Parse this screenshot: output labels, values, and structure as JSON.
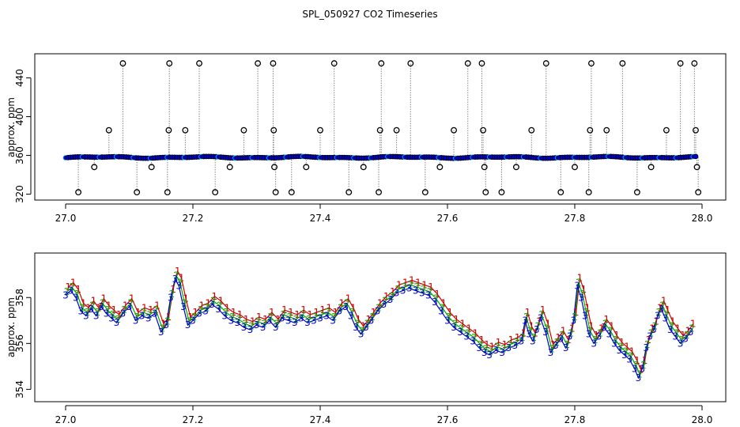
{
  "title": "SPL_050927  CO2 Timeseries",
  "chart_data": [
    {
      "type": "scatter",
      "ylabel": "approx. ppm",
      "xlim": [
        27.0,
        28.0
      ],
      "ylim": [
        318,
        460
      ],
      "xticks": [
        27.0,
        27.2,
        27.4,
        27.6,
        27.8,
        28.0
      ],
      "yticks": [
        320,
        360,
        400,
        440
      ],
      "series": [
        {
          "marker": "open-circle",
          "color": "#000000",
          "baseline": 358,
          "values_description_hidden": false,
          "outliers": [
            {
              "x": 27.02,
              "y": 322
            },
            {
              "x": 27.045,
              "y": 348
            },
            {
              "x": 27.068,
              "y": 386
            },
            {
              "x": 27.09,
              "y": 455
            },
            {
              "x": 27.112,
              "y": 322
            },
            {
              "x": 27.135,
              "y": 348
            },
            {
              "x": 27.16,
              "y": 322
            },
            {
              "x": 27.162,
              "y": 386
            },
            {
              "x": 27.163,
              "y": 455
            },
            {
              "x": 27.188,
              "y": 386
            },
            {
              "x": 27.21,
              "y": 455
            },
            {
              "x": 27.235,
              "y": 322
            },
            {
              "x": 27.258,
              "y": 348
            },
            {
              "x": 27.28,
              "y": 386
            },
            {
              "x": 27.302,
              "y": 455
            },
            {
              "x": 27.326,
              "y": 455
            },
            {
              "x": 27.327,
              "y": 386
            },
            {
              "x": 27.328,
              "y": 348
            },
            {
              "x": 27.33,
              "y": 322
            },
            {
              "x": 27.355,
              "y": 322
            },
            {
              "x": 27.378,
              "y": 348
            },
            {
              "x": 27.4,
              "y": 386
            },
            {
              "x": 27.422,
              "y": 455
            },
            {
              "x": 27.445,
              "y": 322
            },
            {
              "x": 27.468,
              "y": 348
            },
            {
              "x": 27.492,
              "y": 322
            },
            {
              "x": 27.494,
              "y": 386
            },
            {
              "x": 27.496,
              "y": 455
            },
            {
              "x": 27.52,
              "y": 386
            },
            {
              "x": 27.542,
              "y": 455
            },
            {
              "x": 27.565,
              "y": 322
            },
            {
              "x": 27.588,
              "y": 348
            },
            {
              "x": 27.61,
              "y": 386
            },
            {
              "x": 27.632,
              "y": 455
            },
            {
              "x": 27.654,
              "y": 455
            },
            {
              "x": 27.656,
              "y": 386
            },
            {
              "x": 27.658,
              "y": 348
            },
            {
              "x": 27.66,
              "y": 322
            },
            {
              "x": 27.685,
              "y": 322
            },
            {
              "x": 27.708,
              "y": 348
            },
            {
              "x": 27.732,
              "y": 386
            },
            {
              "x": 27.755,
              "y": 455
            },
            {
              "x": 27.778,
              "y": 322
            },
            {
              "x": 27.8,
              "y": 348
            },
            {
              "x": 27.822,
              "y": 322
            },
            {
              "x": 27.824,
              "y": 386
            },
            {
              "x": 27.826,
              "y": 455
            },
            {
              "x": 27.85,
              "y": 386
            },
            {
              "x": 27.875,
              "y": 455
            },
            {
              "x": 27.898,
              "y": 322
            },
            {
              "x": 27.92,
              "y": 348
            },
            {
              "x": 27.944,
              "y": 386
            },
            {
              "x": 27.966,
              "y": 455
            },
            {
              "x": 27.988,
              "y": 455
            },
            {
              "x": 27.99,
              "y": 386
            },
            {
              "x": 27.992,
              "y": 348
            },
            {
              "x": 27.994,
              "y": 322
            }
          ]
        },
        {
          "marker": "filled-circle",
          "color": "#0000cc",
          "baseline_note": "dense band near 358 ppm"
        }
      ]
    },
    {
      "type": "scatter",
      "ylabel": "approx. ppm",
      "xlim": [
        27.0,
        28.0
      ],
      "ylim": [
        353.6,
        359.8
      ],
      "xticks": [
        27.0,
        27.2,
        27.4,
        27.6,
        27.8,
        28.0
      ],
      "yticks": [
        354,
        356,
        358
      ],
      "series": [
        {
          "name": "1",
          "color": "#cc0000",
          "marker": "1"
        },
        {
          "name": "2",
          "color": "#00aa00",
          "marker": "2"
        },
        {
          "name": "3",
          "color": "#0000cc",
          "marker": "3"
        }
      ],
      "trace": [
        {
          "x": 27.0,
          "y": 358.1
        },
        {
          "x": 27.008,
          "y": 358.3
        },
        {
          "x": 27.016,
          "y": 358.0
        },
        {
          "x": 27.024,
          "y": 357.4
        },
        {
          "x": 27.032,
          "y": 357.2
        },
        {
          "x": 27.04,
          "y": 357.5
        },
        {
          "x": 27.048,
          "y": 357.2
        },
        {
          "x": 27.056,
          "y": 357.6
        },
        {
          "x": 27.064,
          "y": 357.3
        },
        {
          "x": 27.072,
          "y": 357.1
        },
        {
          "x": 27.08,
          "y": 356.9
        },
        {
          "x": 27.09,
          "y": 357.3
        },
        {
          "x": 27.1,
          "y": 357.6
        },
        {
          "x": 27.11,
          "y": 357.0
        },
        {
          "x": 27.12,
          "y": 357.2
        },
        {
          "x": 27.13,
          "y": 357.1
        },
        {
          "x": 27.14,
          "y": 357.3
        },
        {
          "x": 27.15,
          "y": 356.5
        },
        {
          "x": 27.158,
          "y": 356.8
        },
        {
          "x": 27.165,
          "y": 358.0
        },
        {
          "x": 27.172,
          "y": 358.8
        },
        {
          "x": 27.178,
          "y": 358.5
        },
        {
          "x": 27.185,
          "y": 357.6
        },
        {
          "x": 27.192,
          "y": 356.8
        },
        {
          "x": 27.2,
          "y": 357.0
        },
        {
          "x": 27.21,
          "y": 357.3
        },
        {
          "x": 27.22,
          "y": 357.4
        },
        {
          "x": 27.23,
          "y": 357.7
        },
        {
          "x": 27.24,
          "y": 357.5
        },
        {
          "x": 27.25,
          "y": 357.2
        },
        {
          "x": 27.26,
          "y": 357.0
        },
        {
          "x": 27.27,
          "y": 356.9
        },
        {
          "x": 27.28,
          "y": 356.7
        },
        {
          "x": 27.29,
          "y": 356.6
        },
        {
          "x": 27.3,
          "y": 356.8
        },
        {
          "x": 27.31,
          "y": 356.7
        },
        {
          "x": 27.32,
          "y": 357.0
        },
        {
          "x": 27.33,
          "y": 356.7
        },
        {
          "x": 27.34,
          "y": 357.1
        },
        {
          "x": 27.35,
          "y": 357.0
        },
        {
          "x": 27.36,
          "y": 356.9
        },
        {
          "x": 27.37,
          "y": 357.1
        },
        {
          "x": 27.38,
          "y": 356.9
        },
        {
          "x": 27.39,
          "y": 357.0
        },
        {
          "x": 27.4,
          "y": 357.1
        },
        {
          "x": 27.41,
          "y": 357.2
        },
        {
          "x": 27.42,
          "y": 357.0
        },
        {
          "x": 27.43,
          "y": 357.4
        },
        {
          "x": 27.44,
          "y": 357.6
        },
        {
          "x": 27.448,
          "y": 357.2
        },
        {
          "x": 27.456,
          "y": 356.7
        },
        {
          "x": 27.464,
          "y": 356.4
        },
        {
          "x": 27.472,
          "y": 356.7
        },
        {
          "x": 27.48,
          "y": 357.0
        },
        {
          "x": 27.49,
          "y": 357.4
        },
        {
          "x": 27.5,
          "y": 357.7
        },
        {
          "x": 27.51,
          "y": 357.9
        },
        {
          "x": 27.52,
          "y": 358.2
        },
        {
          "x": 27.53,
          "y": 358.3
        },
        {
          "x": 27.54,
          "y": 358.4
        },
        {
          "x": 27.55,
          "y": 358.3
        },
        {
          "x": 27.56,
          "y": 358.2
        },
        {
          "x": 27.57,
          "y": 358.1
        },
        {
          "x": 27.58,
          "y": 357.8
        },
        {
          "x": 27.59,
          "y": 357.4
        },
        {
          "x": 27.6,
          "y": 357.0
        },
        {
          "x": 27.61,
          "y": 356.7
        },
        {
          "x": 27.62,
          "y": 356.5
        },
        {
          "x": 27.63,
          "y": 356.3
        },
        {
          "x": 27.64,
          "y": 356.1
        },
        {
          "x": 27.65,
          "y": 355.8
        },
        {
          "x": 27.658,
          "y": 355.6
        },
        {
          "x": 27.666,
          "y": 355.5
        },
        {
          "x": 27.676,
          "y": 355.7
        },
        {
          "x": 27.686,
          "y": 355.6
        },
        {
          "x": 27.696,
          "y": 355.8
        },
        {
          "x": 27.706,
          "y": 355.9
        },
        {
          "x": 27.716,
          "y": 356.1
        },
        {
          "x": 27.722,
          "y": 357.0
        },
        {
          "x": 27.728,
          "y": 356.4
        },
        {
          "x": 27.734,
          "y": 356.1
        },
        {
          "x": 27.74,
          "y": 356.6
        },
        {
          "x": 27.746,
          "y": 357.1
        },
        {
          "x": 27.754,
          "y": 356.5
        },
        {
          "x": 27.762,
          "y": 355.6
        },
        {
          "x": 27.77,
          "y": 355.9
        },
        {
          "x": 27.778,
          "y": 356.2
        },
        {
          "x": 27.786,
          "y": 355.8
        },
        {
          "x": 27.792,
          "y": 356.3
        },
        {
          "x": 27.798,
          "y": 357.0
        },
        {
          "x": 27.804,
          "y": 358.5
        },
        {
          "x": 27.81,
          "y": 358.0
        },
        {
          "x": 27.816,
          "y": 357.2
        },
        {
          "x": 27.822,
          "y": 356.4
        },
        {
          "x": 27.83,
          "y": 356.0
        },
        {
          "x": 27.838,
          "y": 356.3
        },
        {
          "x": 27.846,
          "y": 356.7
        },
        {
          "x": 27.854,
          "y": 356.4
        },
        {
          "x": 27.862,
          "y": 356.0
        },
        {
          "x": 27.87,
          "y": 355.7
        },
        {
          "x": 27.878,
          "y": 355.5
        },
        {
          "x": 27.886,
          "y": 355.3
        },
        {
          "x": 27.894,
          "y": 354.9
        },
        {
          "x": 27.9,
          "y": 354.5
        },
        {
          "x": 27.906,
          "y": 354.9
        },
        {
          "x": 27.912,
          "y": 355.8
        },
        {
          "x": 27.918,
          "y": 356.3
        },
        {
          "x": 27.924,
          "y": 356.6
        },
        {
          "x": 27.93,
          "y": 357.2
        },
        {
          "x": 27.936,
          "y": 357.5
        },
        {
          "x": 27.942,
          "y": 357.1
        },
        {
          "x": 27.95,
          "y": 356.6
        },
        {
          "x": 27.958,
          "y": 356.3
        },
        {
          "x": 27.966,
          "y": 356.0
        },
        {
          "x": 27.974,
          "y": 356.2
        },
        {
          "x": 27.982,
          "y": 356.5
        }
      ]
    }
  ]
}
